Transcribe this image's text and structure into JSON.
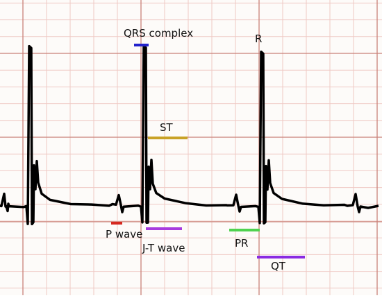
{
  "labels": {
    "qrs": "QRS complex",
    "r": "R",
    "st": "ST",
    "p_wave": "P wave",
    "jt_wave": "J-T wave",
    "pr": "PR",
    "qt": "QT"
  }
}
